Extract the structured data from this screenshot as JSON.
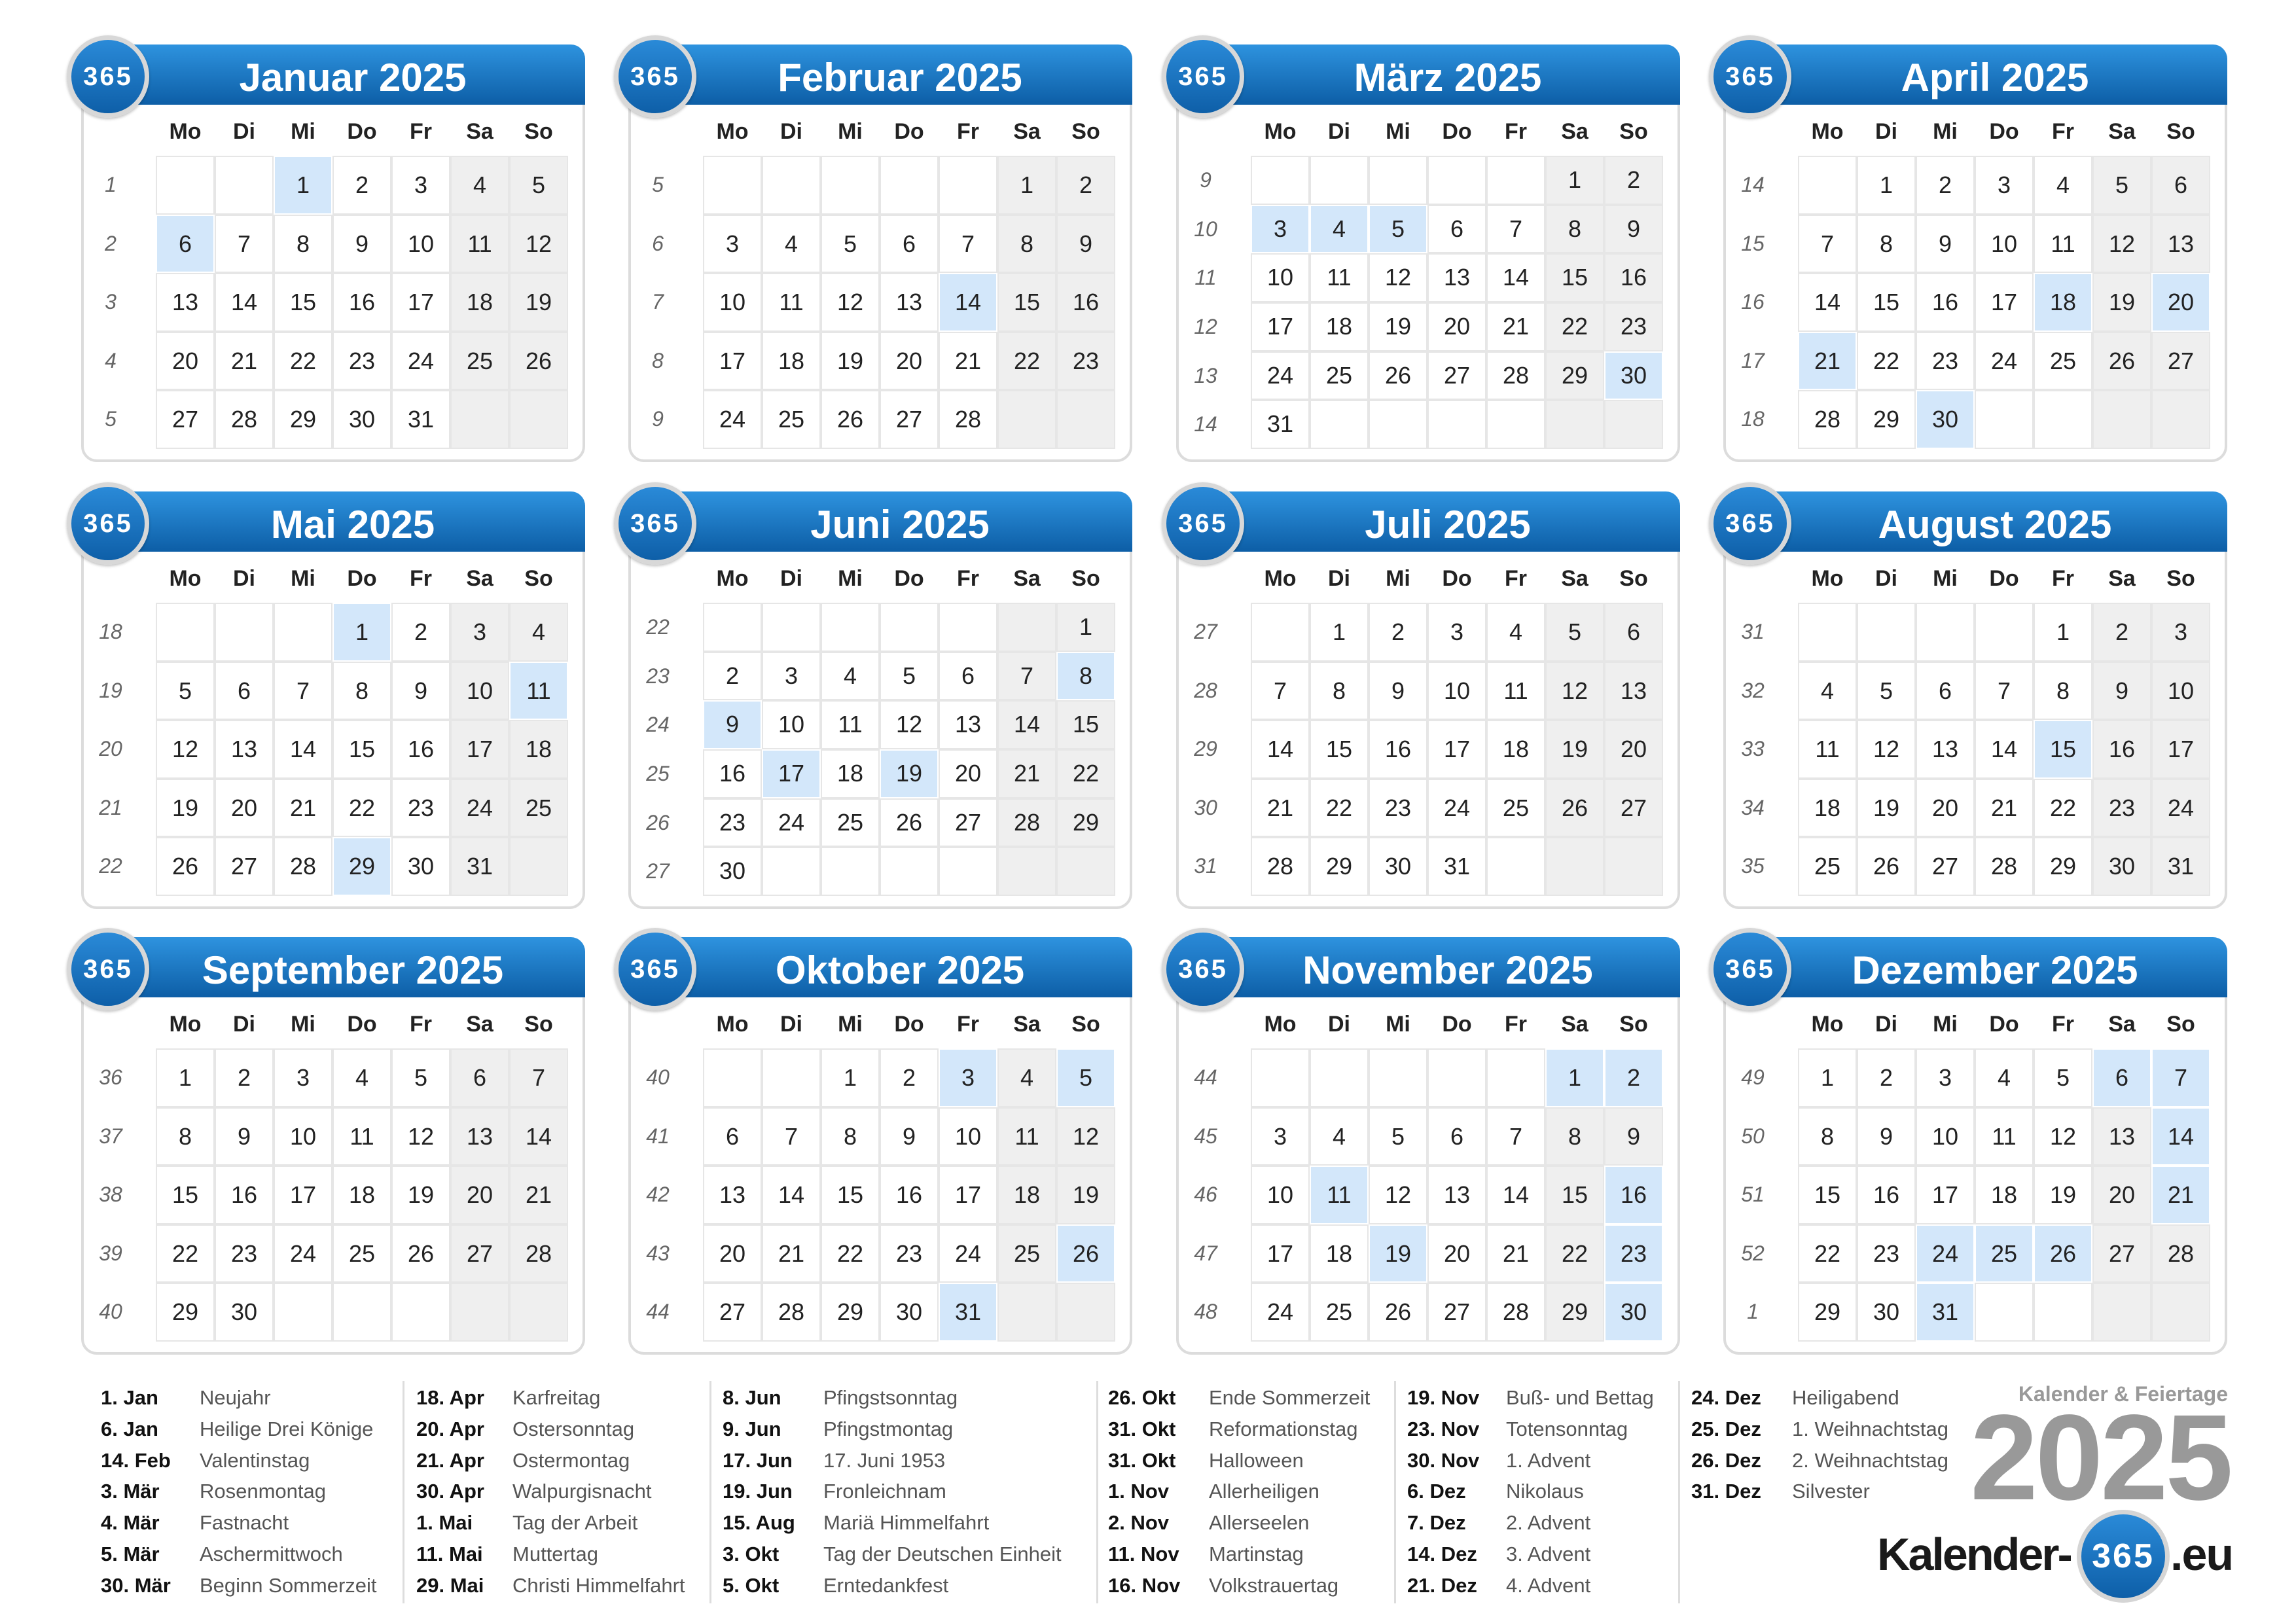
{
  "badge_text": "365",
  "weekdays": [
    "Mo",
    "Di",
    "Mi",
    "Do",
    "Fr",
    "Sa",
    "So"
  ],
  "colors": {
    "header": "#1a74c4",
    "highlight": "#d3e7fa",
    "weekend": "#efefef"
  },
  "months": [
    {
      "title": "Januar 2025",
      "weeks": [
        1,
        2,
        3,
        4,
        5
      ],
      "days": [
        [
          null,
          null,
          1,
          2,
          3,
          4,
          5
        ],
        [
          6,
          7,
          8,
          9,
          10,
          11,
          12
        ],
        [
          13,
          14,
          15,
          16,
          17,
          18,
          19
        ],
        [
          20,
          21,
          22,
          23,
          24,
          25,
          26
        ],
        [
          27,
          28,
          29,
          30,
          31,
          null,
          null
        ]
      ],
      "highlighted": [
        1,
        6
      ]
    },
    {
      "title": "Februar 2025",
      "weeks": [
        5,
        6,
        7,
        8,
        9
      ],
      "days": [
        [
          null,
          null,
          null,
          null,
          null,
          1,
          2
        ],
        [
          3,
          4,
          5,
          6,
          7,
          8,
          9
        ],
        [
          10,
          11,
          12,
          13,
          14,
          15,
          16
        ],
        [
          17,
          18,
          19,
          20,
          21,
          22,
          23
        ],
        [
          24,
          25,
          26,
          27,
          28,
          null,
          null
        ]
      ],
      "highlighted": [
        14
      ]
    },
    {
      "title": "März 2025",
      "weeks": [
        9,
        10,
        11,
        12,
        13,
        14
      ],
      "days": [
        [
          null,
          null,
          null,
          null,
          null,
          1,
          2
        ],
        [
          3,
          4,
          5,
          6,
          7,
          8,
          9
        ],
        [
          10,
          11,
          12,
          13,
          14,
          15,
          16
        ],
        [
          17,
          18,
          19,
          20,
          21,
          22,
          23
        ],
        [
          24,
          25,
          26,
          27,
          28,
          29,
          30
        ],
        [
          31,
          null,
          null,
          null,
          null,
          null,
          null
        ]
      ],
      "highlighted": [
        3,
        4,
        5,
        30
      ]
    },
    {
      "title": "April 2025",
      "weeks": [
        14,
        15,
        16,
        17,
        18
      ],
      "days": [
        [
          null,
          1,
          2,
          3,
          4,
          5,
          6
        ],
        [
          7,
          8,
          9,
          10,
          11,
          12,
          13
        ],
        [
          14,
          15,
          16,
          17,
          18,
          19,
          20
        ],
        [
          21,
          22,
          23,
          24,
          25,
          26,
          27
        ],
        [
          28,
          29,
          30,
          null,
          null,
          null,
          null
        ]
      ],
      "highlighted": [
        18,
        20,
        21,
        30
      ]
    },
    {
      "title": "Mai 2025",
      "weeks": [
        18,
        19,
        20,
        21,
        22
      ],
      "days": [
        [
          null,
          null,
          null,
          1,
          2,
          3,
          4
        ],
        [
          5,
          6,
          7,
          8,
          9,
          10,
          11
        ],
        [
          12,
          13,
          14,
          15,
          16,
          17,
          18
        ],
        [
          19,
          20,
          21,
          22,
          23,
          24,
          25
        ],
        [
          26,
          27,
          28,
          29,
          30,
          31,
          null
        ]
      ],
      "highlighted": [
        1,
        11,
        29
      ]
    },
    {
      "title": "Juni 2025",
      "weeks": [
        22,
        23,
        24,
        25,
        26,
        27
      ],
      "days": [
        [
          null,
          null,
          null,
          null,
          null,
          null,
          1
        ],
        [
          2,
          3,
          4,
          5,
          6,
          7,
          8
        ],
        [
          9,
          10,
          11,
          12,
          13,
          14,
          15
        ],
        [
          16,
          17,
          18,
          19,
          20,
          21,
          22
        ],
        [
          23,
          24,
          25,
          26,
          27,
          28,
          29
        ],
        [
          30,
          null,
          null,
          null,
          null,
          null,
          null
        ]
      ],
      "highlighted": [
        8,
        9,
        17,
        19
      ]
    },
    {
      "title": "Juli 2025",
      "weeks": [
        27,
        28,
        29,
        30,
        31
      ],
      "days": [
        [
          null,
          1,
          2,
          3,
          4,
          5,
          6
        ],
        [
          7,
          8,
          9,
          10,
          11,
          12,
          13
        ],
        [
          14,
          15,
          16,
          17,
          18,
          19,
          20
        ],
        [
          21,
          22,
          23,
          24,
          25,
          26,
          27
        ],
        [
          28,
          29,
          30,
          31,
          null,
          null,
          null
        ]
      ],
      "highlighted": []
    },
    {
      "title": "August 2025",
      "weeks": [
        31,
        32,
        33,
        34,
        35
      ],
      "days": [
        [
          null,
          null,
          null,
          null,
          1,
          2,
          3
        ],
        [
          4,
          5,
          6,
          7,
          8,
          9,
          10
        ],
        [
          11,
          12,
          13,
          14,
          15,
          16,
          17
        ],
        [
          18,
          19,
          20,
          21,
          22,
          23,
          24
        ],
        [
          25,
          26,
          27,
          28,
          29,
          30,
          31
        ]
      ],
      "highlighted": [
        15
      ]
    },
    {
      "title": "September 2025",
      "weeks": [
        36,
        37,
        38,
        39,
        40
      ],
      "days": [
        [
          1,
          2,
          3,
          4,
          5,
          6,
          7
        ],
        [
          8,
          9,
          10,
          11,
          12,
          13,
          14
        ],
        [
          15,
          16,
          17,
          18,
          19,
          20,
          21
        ],
        [
          22,
          23,
          24,
          25,
          26,
          27,
          28
        ],
        [
          29,
          30,
          null,
          null,
          null,
          null,
          null
        ]
      ],
      "highlighted": []
    },
    {
      "title": "Oktober 2025",
      "weeks": [
        40,
        41,
        42,
        43,
        44
      ],
      "days": [
        [
          null,
          null,
          1,
          2,
          3,
          4,
          5
        ],
        [
          6,
          7,
          8,
          9,
          10,
          11,
          12
        ],
        [
          13,
          14,
          15,
          16,
          17,
          18,
          19
        ],
        [
          20,
          21,
          22,
          23,
          24,
          25,
          26
        ],
        [
          27,
          28,
          29,
          30,
          31,
          null,
          null
        ]
      ],
      "highlighted": [
        3,
        5,
        26,
        31
      ]
    },
    {
      "title": "November 2025",
      "weeks": [
        44,
        45,
        46,
        47,
        48
      ],
      "days": [
        [
          null,
          null,
          null,
          null,
          null,
          1,
          2
        ],
        [
          3,
          4,
          5,
          6,
          7,
          8,
          9
        ],
        [
          10,
          11,
          12,
          13,
          14,
          15,
          16
        ],
        [
          17,
          18,
          19,
          20,
          21,
          22,
          23
        ],
        [
          24,
          25,
          26,
          27,
          28,
          29,
          30
        ]
      ],
      "highlighted": [
        1,
        2,
        11,
        16,
        19,
        23,
        30
      ]
    },
    {
      "title": "Dezember 2025",
      "weeks": [
        49,
        50,
        51,
        52,
        1
      ],
      "days": [
        [
          1,
          2,
          3,
          4,
          5,
          6,
          7
        ],
        [
          8,
          9,
          10,
          11,
          12,
          13,
          14
        ],
        [
          15,
          16,
          17,
          18,
          19,
          20,
          21
        ],
        [
          22,
          23,
          24,
          25,
          26,
          27,
          28
        ],
        [
          29,
          30,
          31,
          null,
          null,
          null,
          null
        ]
      ],
      "highlighted": [
        6,
        7,
        14,
        21,
        24,
        25,
        26,
        31
      ]
    }
  ],
  "holidays": [
    [
      [
        "1. Jan",
        "Neujahr"
      ],
      [
        "6. Jan",
        "Heilige Drei Könige"
      ],
      [
        "14. Feb",
        "Valentinstag"
      ],
      [
        "3. Mär",
        "Rosenmontag"
      ],
      [
        "4. Mär",
        "Fastnacht"
      ],
      [
        "5. Mär",
        "Aschermittwoch"
      ],
      [
        "30. Mär",
        "Beginn Sommerzeit"
      ]
    ],
    [
      [
        "18. Apr",
        "Karfreitag"
      ],
      [
        "20. Apr",
        "Ostersonntag"
      ],
      [
        "21. Apr",
        "Ostermontag"
      ],
      [
        "30. Apr",
        "Walpurgisnacht"
      ],
      [
        "1. Mai",
        "Tag der Arbeit"
      ],
      [
        "11. Mai",
        "Muttertag"
      ],
      [
        "29. Mai",
        "Christi Himmelfahrt"
      ]
    ],
    [
      [
        "8. Jun",
        "Pfingstsonntag"
      ],
      [
        "9. Jun",
        "Pfingstmontag"
      ],
      [
        "17. Jun",
        "17. Juni 1953"
      ],
      [
        "19. Jun",
        "Fronleichnam"
      ],
      [
        "15. Aug",
        "Mariä Himmelfahrt"
      ],
      [
        "3. Okt",
        "Tag der Deutschen Einheit"
      ],
      [
        "5. Okt",
        "Erntedankfest"
      ]
    ],
    [
      [
        "26. Okt",
        "Ende Sommerzeit"
      ],
      [
        "31. Okt",
        "Reformationstag"
      ],
      [
        "31. Okt",
        "Halloween"
      ],
      [
        "1. Nov",
        "Allerheiligen"
      ],
      [
        "2. Nov",
        "Allerseelen"
      ],
      [
        "11. Nov",
        "Martinstag"
      ],
      [
        "16. Nov",
        "Volkstrauertag"
      ]
    ],
    [
      [
        "19. Nov",
        "Buß- und Bettag"
      ],
      [
        "23. Nov",
        "Totensonntag"
      ],
      [
        "30. Nov",
        "1. Advent"
      ],
      [
        "6. Dez",
        "Nikolaus"
      ],
      [
        "7. Dez",
        "2. Advent"
      ],
      [
        "14. Dez",
        "3. Advent"
      ],
      [
        "21. Dez",
        "4. Advent"
      ]
    ],
    [
      [
        "24. Dez",
        "Heiligabend"
      ],
      [
        "25. Dez",
        "1. Weihnachtstag"
      ],
      [
        "26. Dez",
        "2. Weihnachtstag"
      ],
      [
        "31. Dez",
        "Silvester"
      ]
    ]
  ],
  "branding": {
    "subtitle": "Kalender & Feiertage",
    "year": "2025",
    "logo_left": "Kalender-",
    "logo_circle": "365",
    "logo_right": ".eu"
  }
}
